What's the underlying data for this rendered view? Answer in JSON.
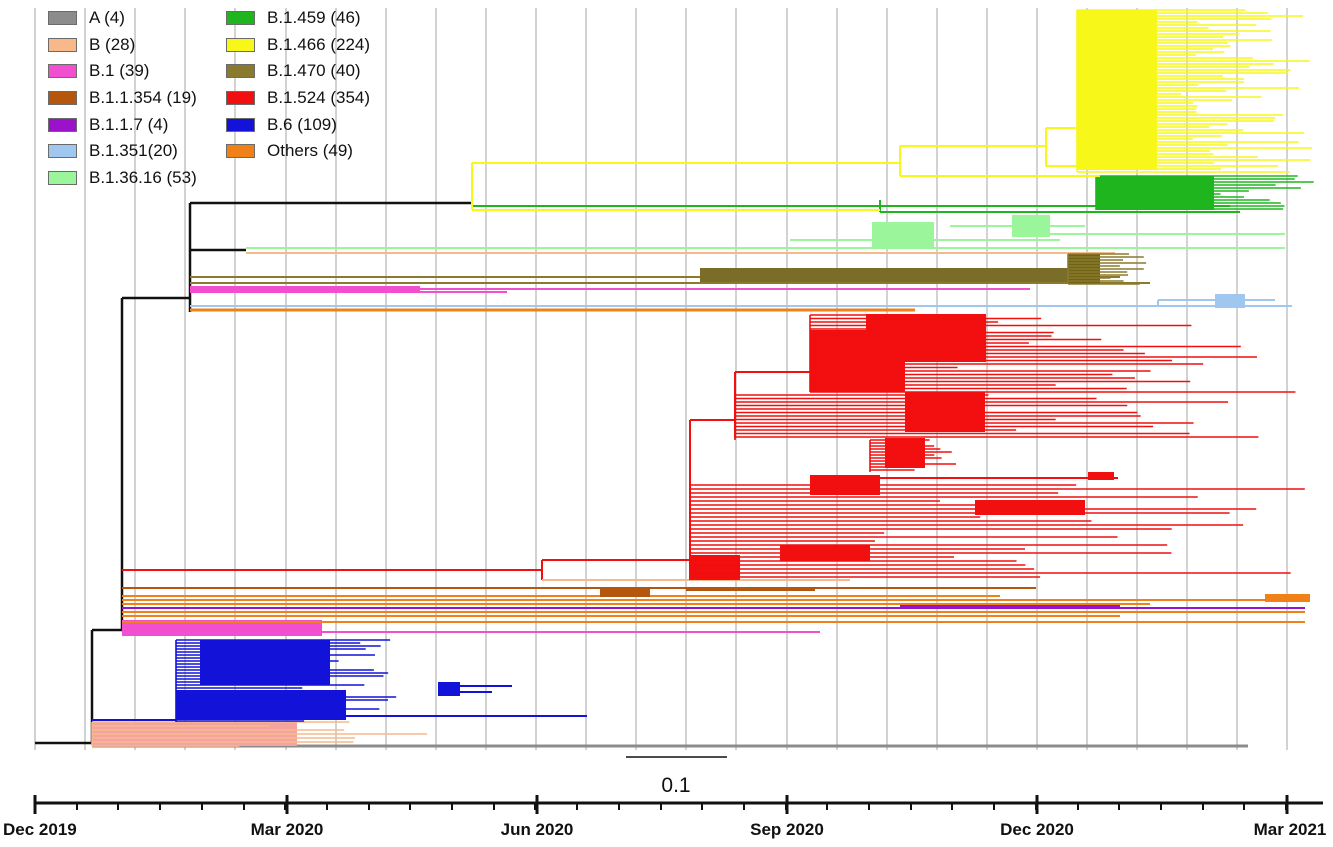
{
  "legend": [
    {
      "label": "A (4)",
      "color": "#8c8c8c"
    },
    {
      "label": "B (28)",
      "color": "#f7b98a"
    },
    {
      "label": "B.1 (39)",
      "color": "#f24fd0"
    },
    {
      "label": "B.1.1.354 (19)",
      "color": "#b5560f"
    },
    {
      "label": "B.1.1.7 (4)",
      "color": "#9a12c9"
    },
    {
      "label": "B.1.351(20)",
      "color": "#9fc7f0"
    },
    {
      "label": "B.1.36.16 (53)",
      "color": "#9bf59a"
    },
    {
      "label": "B.1.459 (46)",
      "color": "#1fb51f"
    },
    {
      "label": "B.1.466 (224)",
      "color": "#f7f71a"
    },
    {
      "label": "B.1.470 (40)",
      "color": "#8a7a2e"
    },
    {
      "label": "B.1.524 (354)",
      "color": "#f20f0f"
    },
    {
      "label": "B.6 (109)",
      "color": "#1212d9"
    },
    {
      "label": "Others (49)",
      "color": "#f08018"
    }
  ],
  "timeline": {
    "ticks": [
      "Dec 2019",
      "Mar 2020",
      "Jun 2020",
      "Sep 2020",
      "Dec 2020",
      "Mar 2021"
    ]
  },
  "scale_bar": {
    "label": "0.1"
  }
}
